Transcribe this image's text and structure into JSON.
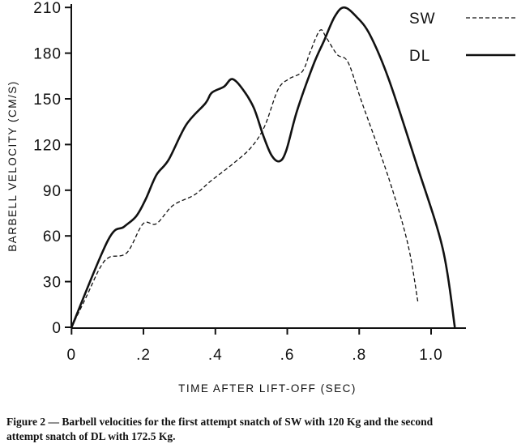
{
  "chart_data": {
    "type": "line",
    "title": "",
    "xlabel": "TIME AFTER LIFT-OFF (SEC)",
    "ylabel": "BARBELL VELOCITY (CM/S)",
    "xlim": [
      0,
      1.07
    ],
    "ylim": [
      0,
      210
    ],
    "xticks": [
      0,
      0.2,
      0.4,
      0.6,
      0.8,
      1.0
    ],
    "xtick_labels": [
      "0",
      ".2",
      ".4",
      ".6",
      ".8",
      "1.0"
    ],
    "yticks": [
      0,
      30,
      60,
      90,
      120,
      150,
      180,
      210
    ],
    "ytick_labels": [
      "0",
      "30",
      "60",
      "90",
      "120",
      "150",
      "180",
      "210"
    ],
    "grid": false,
    "legend_position": "top-right",
    "series": [
      {
        "name": "SW",
        "style": "dashed",
        "x": [
          0,
          0.041,
          0.079,
          0.105,
          0.154,
          0.199,
          0.236,
          0.282,
          0.342,
          0.387,
          0.447,
          0.499,
          0.537,
          0.574,
          0.604,
          0.642,
          0.664,
          0.691,
          0.709,
          0.739,
          0.769,
          0.807,
          0.882,
          0.935,
          0.963
        ],
        "y": [
          0,
          20,
          39,
          46,
          49,
          68,
          68,
          80,
          87,
          96,
          107,
          118,
          132,
          156,
          163,
          168,
          181,
          195,
          190,
          179,
          174,
          148,
          98,
          55,
          17
        ]
      },
      {
        "name": "DL",
        "style": "solid",
        "x": [
          0,
          0.101,
          0.146,
          0.18,
          0.206,
          0.236,
          0.27,
          0.319,
          0.372,
          0.39,
          0.424,
          0.447,
          0.477,
          0.507,
          0.533,
          0.556,
          0.578,
          0.597,
          0.627,
          0.672,
          0.702,
          0.732,
          0.758,
          0.792,
          0.83,
          0.882,
          0.957,
          1.032,
          1.066
        ],
        "y": [
          0,
          57,
          66,
          73,
          84,
          100,
          110,
          133,
          147,
          154,
          158,
          163,
          156,
          144,
          126,
          113,
          109,
          116,
          142,
          172,
          188,
          204,
          210,
          204,
          192,
          163,
          109,
          52,
          0
        ]
      }
    ]
  },
  "caption": {
    "line1": "Figure 2 — Barbell velocities for the first attempt snatch of SW with 120 Kg and the second",
    "line2": "attempt snatch of DL with 172.5 Kg."
  }
}
